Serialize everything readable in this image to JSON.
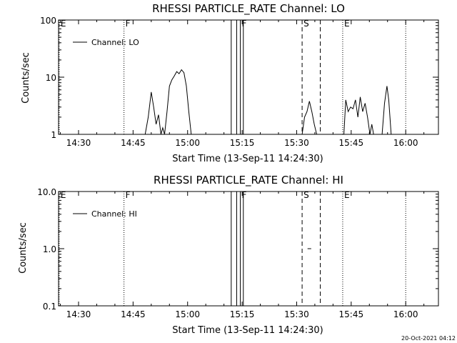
{
  "footer": {
    "timestamp": "20-Oct-2021 04:12"
  },
  "chart_data": [
    {
      "type": "line",
      "title": "RHESSI PARTICLE_RATE Channel: LO",
      "xlabel": "Start Time (13-Sep-11 14:24:30)",
      "ylabel": "Counts/sec",
      "yscale": "log",
      "ylim": [
        1,
        100
      ],
      "xlim": [
        "14:24:30",
        "16:09:00"
      ],
      "x_ticks": [
        "14:30",
        "14:45",
        "15:00",
        "15:15",
        "15:30",
        "15:45",
        "16:00"
      ],
      "y_ticks": [
        "1",
        "10",
        "100"
      ],
      "legend": {
        "position": "top-left",
        "entries": [
          "Channel: LO"
        ]
      },
      "markers": [
        {
          "label": "E",
          "time": "14:24:40",
          "style": "dotted"
        },
        {
          "label": "F",
          "time": "14:42:30",
          "style": "dotted"
        },
        {
          "label": "",
          "time": "15:12:00",
          "style": "solid"
        },
        {
          "label": "",
          "time": "15:13:30",
          "style": "solid"
        },
        {
          "label": "F",
          "time": "15:14:30",
          "style": "solid"
        },
        {
          "label": "",
          "time": "15:15:20",
          "style": "solid"
        },
        {
          "label": "S",
          "time": "15:31:30",
          "style": "dashed"
        },
        {
          "label": "",
          "time": "15:36:30",
          "style": "dashed"
        },
        {
          "label": "E",
          "time": "15:42:40",
          "style": "dotted"
        },
        {
          "label": "",
          "time": "16:00:00",
          "style": "dotted"
        }
      ],
      "series": [
        {
          "name": "Channel: LO",
          "segments": [
            {
              "x": [
                "14:48:20",
                "14:49:10",
                "14:50:00",
                "14:50:40",
                "14:51:20",
                "14:52:00",
                "14:52:40",
                "14:53:10",
                "14:53:40",
                "14:54:20",
                "14:55:00",
                "14:55:40",
                "14:56:20",
                "14:57:00",
                "14:57:40",
                "14:58:20",
                "14:59:00",
                "14:59:40",
                "15:00:20",
                "15:01:00"
              ],
              "y": [
                1.0,
                2.0,
                5.5,
                3.0,
                1.5,
                2.2,
                1.0,
                1.3,
                1.0,
                2.5,
                7.0,
                9.0,
                10.5,
                12.5,
                11.5,
                13.5,
                12.0,
                7.0,
                2.5,
                1.0
              ]
            },
            {
              "x": [
                "15:31:30",
                "15:32:10",
                "15:32:50",
                "15:33:30",
                "15:34:10",
                "15:34:50",
                "15:35:30"
              ],
              "y": [
                1.0,
                2.0,
                2.5,
                3.8,
                2.5,
                1.5,
                1.0
              ]
            },
            {
              "x": [
                "15:43:00",
                "15:43:30",
                "15:44:10",
                "15:44:50",
                "15:45:30",
                "15:46:10",
                "15:46:50",
                "15:47:30",
                "15:48:10",
                "15:48:50",
                "15:49:30",
                "15:50:10",
                "15:50:40",
                "15:51:10",
                "15:51:50",
                "15:52:40",
                "15:53:30",
                "15:54:10",
                "15:54:50",
                "15:55:20",
                "15:56:00"
              ],
              "y": [
                1.0,
                4.0,
                2.5,
                3.0,
                2.8,
                4.0,
                2.0,
                4.5,
                2.5,
                3.5,
                2.0,
                1.0,
                1.5,
                1.0,
                1.0,
                1.0,
                1.0,
                3.5,
                7.0,
                4.0,
                1.0
              ]
            }
          ]
        }
      ]
    },
    {
      "type": "line",
      "title": "RHESSI PARTICLE_RATE Channel: HI",
      "xlabel": "Start Time (13-Sep-11 14:24:30)",
      "ylabel": "Counts/sec",
      "yscale": "log",
      "ylim": [
        0.1,
        10
      ],
      "xlim": [
        "14:24:30",
        "16:09:00"
      ],
      "x_ticks": [
        "14:30",
        "14:45",
        "15:00",
        "15:15",
        "15:30",
        "15:45",
        "16:00"
      ],
      "y_ticks": [
        "0.1",
        "1.0",
        "10.0"
      ],
      "legend": {
        "position": "top-left",
        "entries": [
          "Channel: HI"
        ]
      },
      "markers": [
        {
          "label": "E",
          "time": "14:24:40",
          "style": "dotted"
        },
        {
          "label": "F",
          "time": "14:42:30",
          "style": "dotted"
        },
        {
          "label": "",
          "time": "15:12:00",
          "style": "solid"
        },
        {
          "label": "",
          "time": "15:13:30",
          "style": "solid"
        },
        {
          "label": "F",
          "time": "15:14:30",
          "style": "solid"
        },
        {
          "label": "",
          "time": "15:15:20",
          "style": "solid"
        },
        {
          "label": "S",
          "time": "15:31:30",
          "style": "dashed"
        },
        {
          "label": "",
          "time": "15:36:30",
          "style": "dashed"
        },
        {
          "label": "E",
          "time": "15:42:40",
          "style": "dotted"
        },
        {
          "label": "",
          "time": "16:00:00",
          "style": "dotted"
        }
      ],
      "series": [
        {
          "name": "Channel: HI",
          "segments": [
            {
              "x": [
                "15:33:00",
                "15:34:00"
              ],
              "y": [
                1.0,
                1.0
              ]
            }
          ]
        }
      ]
    }
  ]
}
